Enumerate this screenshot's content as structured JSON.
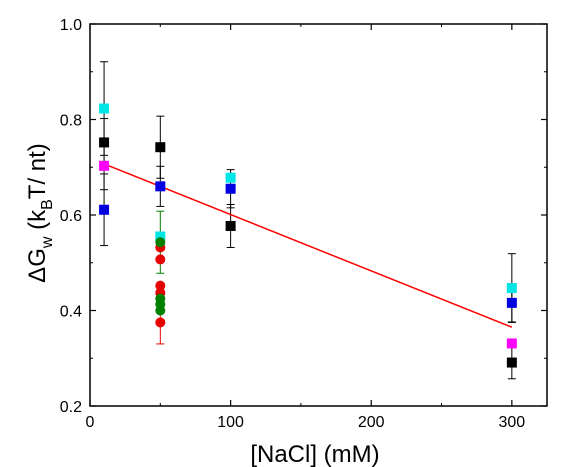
{
  "chart_data": {
    "type": "scatter",
    "title": "",
    "xlabel": "[NaCl] (mM)",
    "ylabel": {
      "prefix": "ΔG",
      "sub1": "w",
      "middle": " (k",
      "sub2": "B",
      "suffix": "T/ nt)"
    },
    "xlim": [
      0,
      325
    ],
    "ylim": [
      0.2,
      1.0
    ],
    "xticks": [
      0,
      100,
      200,
      300
    ],
    "yticks": [
      0.2,
      0.4,
      0.6,
      0.8,
      1.0
    ],
    "ytick_labels": [
      "0.2",
      "0.4",
      "0.6",
      "0.8",
      "1.0"
    ],
    "grid": false,
    "legend": "none",
    "series": [
      {
        "marker": "square",
        "color": "#00e5e5",
        "points": [
          {
            "x": 10,
            "y": 0.823,
            "err": 0.098
          },
          {
            "x": 50,
            "y": 0.555,
            "err": 0
          },
          {
            "x": 100,
            "y": 0.678,
            "err": 0
          },
          {
            "x": 300,
            "y": 0.447,
            "err": 0.072
          }
        ]
      },
      {
        "marker": "square",
        "color": "#0000e0",
        "points": [
          {
            "x": 10,
            "y": 0.611,
            "err": 0.075
          },
          {
            "x": 50,
            "y": 0.66,
            "err": 0.042
          },
          {
            "x": 100,
            "y": 0.655,
            "err": 0.04
          },
          {
            "x": 300,
            "y": 0.416,
            "err": 0.04
          }
        ]
      },
      {
        "marker": "square",
        "color": "#000000",
        "points": [
          {
            "x": 10,
            "y": 0.752,
            "err": 0.05
          },
          {
            "x": 50,
            "y": 0.742,
            "err": 0.065
          },
          {
            "x": 100,
            "y": 0.577,
            "err": 0.045
          },
          {
            "x": 300,
            "y": 0.291,
            "err": 0.034
          }
        ]
      },
      {
        "marker": "square",
        "color": "#ff00ff",
        "points": [
          {
            "x": 10,
            "y": 0.703,
            "err": 0.05
          },
          {
            "x": 300,
            "y": 0.331,
            "err": 0
          }
        ]
      },
      {
        "marker": "circle",
        "color": "#e60000",
        "points": [
          {
            "x": 50,
            "y": 0.532,
            "err": 0
          },
          {
            "x": 50,
            "y": 0.507,
            "err": 0
          },
          {
            "x": 50,
            "y": 0.452,
            "err": 0
          },
          {
            "x": 50,
            "y": 0.437,
            "err": 0
          },
          {
            "x": 50,
            "y": 0.375,
            "err": 0.045
          }
        ]
      },
      {
        "marker": "circle",
        "color": "#008000",
        "points": [
          {
            "x": 50,
            "y": 0.543,
            "err": 0.065
          },
          {
            "x": 50,
            "y": 0.425,
            "err": 0
          },
          {
            "x": 50,
            "y": 0.413,
            "err": 0
          },
          {
            "x": 50,
            "y": 0.4,
            "err": 0
          }
        ]
      }
    ],
    "fit_line": {
      "color": "#ff0000",
      "x": [
        10,
        300
      ],
      "y": [
        0.707,
        0.365
      ]
    }
  }
}
